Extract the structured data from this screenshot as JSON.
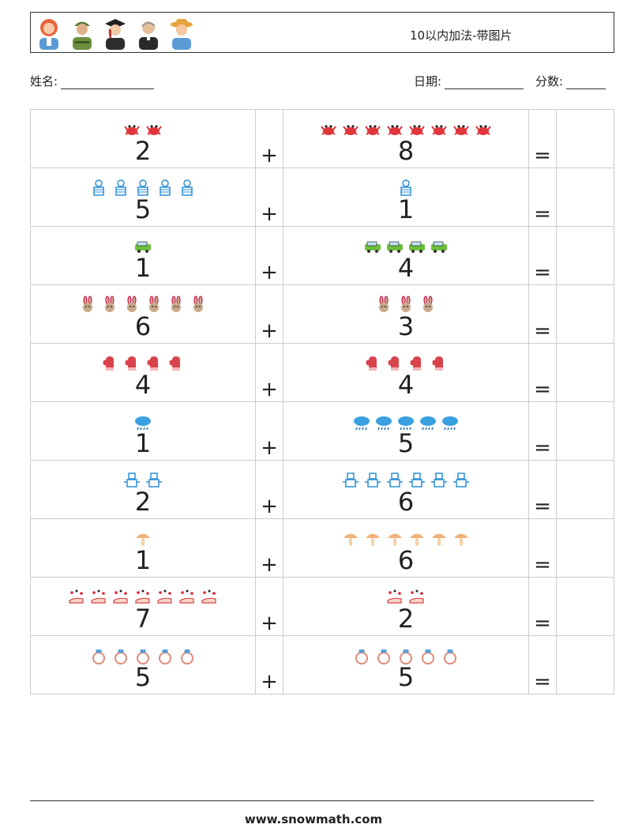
{
  "header": {
    "title": "10以内加法-带图片",
    "avatars": [
      "woman-icon",
      "soldier-icon",
      "graduate-icon",
      "priest-icon",
      "farmer-icon"
    ]
  },
  "info": {
    "name_label": "姓名:",
    "date_label": "日期:",
    "score_label": "分数:"
  },
  "operators": {
    "plus": "+",
    "equals": "="
  },
  "problems": [
    {
      "a": "2",
      "b": "8",
      "icon": "crab-icon",
      "color": "#e0353b"
    },
    {
      "a": "5",
      "b": "1",
      "icon": "robot-girl-icon",
      "color": "#2b8fd6"
    },
    {
      "a": "1",
      "b": "4",
      "icon": "car-icon",
      "color": "#6cbf3a"
    },
    {
      "a": "6",
      "b": "3",
      "icon": "rabbit-icon",
      "color": "#c8a98a"
    },
    {
      "a": "4",
      "b": "4",
      "icon": "mitten-icon",
      "color": "#d9434b"
    },
    {
      "a": "1",
      "b": "5",
      "icon": "rain-cloud-icon",
      "color": "#3aa0e0"
    },
    {
      "a": "2",
      "b": "6",
      "icon": "robot-icon",
      "color": "#2b8fd6"
    },
    {
      "a": "1",
      "b": "6",
      "icon": "mushroom-icon",
      "color": "#f0b27a"
    },
    {
      "a": "7",
      "b": "2",
      "icon": "magic-hand-icon",
      "color": "#d9434b"
    },
    {
      "a": "5",
      "b": "5",
      "icon": "ring-icon",
      "color": "#e08a7a"
    }
  ],
  "footer": {
    "url": "www.snowmath.com"
  }
}
